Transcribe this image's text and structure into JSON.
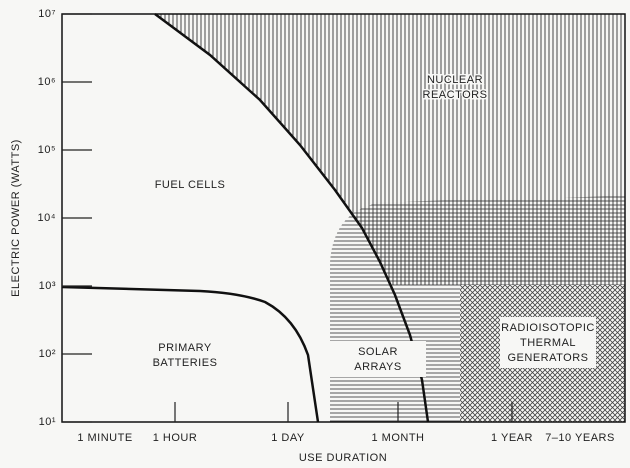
{
  "chart_data": {
    "type": "region",
    "y_label": "ELECTRIC POWER (WATTS)",
    "x_label": "USE DURATION",
    "log_y": true,
    "ylim": [
      10,
      10000000
    ],
    "yticks": [
      {
        "value": 10,
        "label": "10¹"
      },
      {
        "value": 100,
        "label": "10²"
      },
      {
        "value": 1000,
        "label": "10³"
      },
      {
        "value": 10000,
        "label": "10⁴"
      },
      {
        "value": 100000,
        "label": "10⁵"
      },
      {
        "value": 1000000,
        "label": "10⁶"
      },
      {
        "value": 10000000,
        "label": "10⁷"
      }
    ],
    "categories": [
      "1 MINUTE",
      "1 HOUR",
      "1 DAY",
      "1 MONTH",
      "1 YEAR",
      "7–10 YEARS"
    ],
    "regions": [
      {
        "lines": [
          "NUCLEAR",
          "REACTORS"
        ]
      },
      {
        "lines": [
          "FUEL CELLS"
        ]
      },
      {
        "lines": [
          "PRIMARY",
          "BATTERIES"
        ]
      },
      {
        "lines": [
          "SOLAR",
          "ARRAYS"
        ]
      },
      {
        "lines": [
          "RADIOISOTOPIC",
          "THERMAL",
          "GENERATORS"
        ]
      }
    ]
  }
}
